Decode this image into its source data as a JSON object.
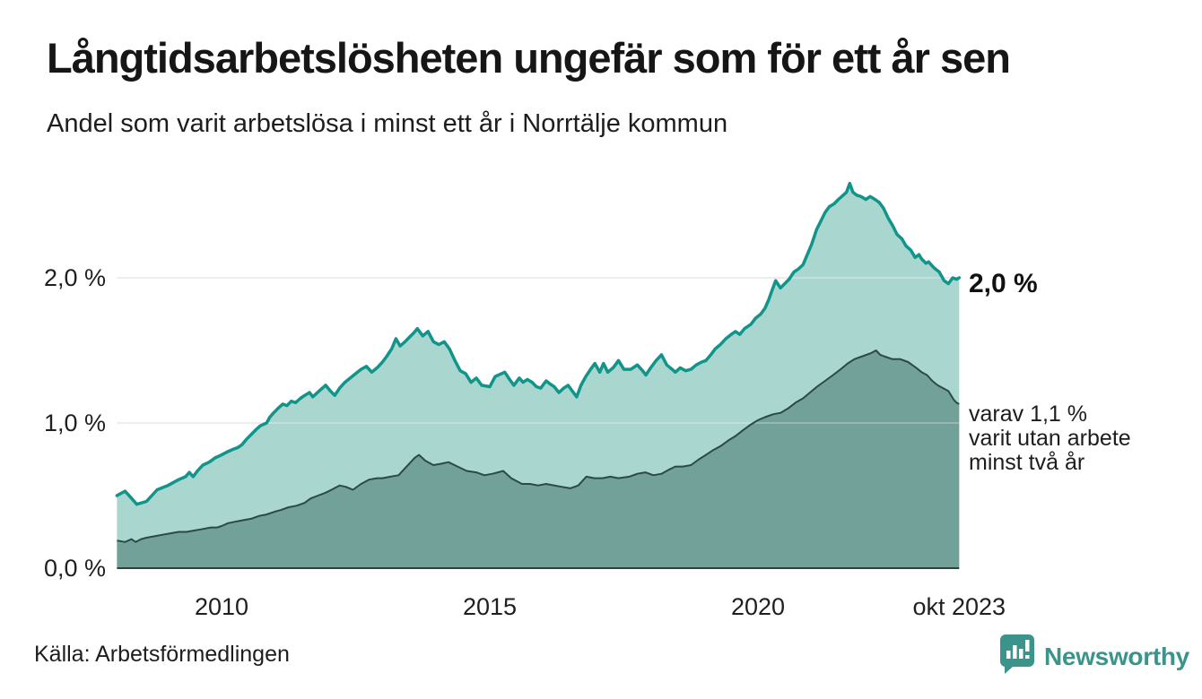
{
  "header": {
    "title": "Långtidsarbetslösheten ungefär som för ett år sen",
    "subtitle": "Andel som varit arbetslösa i minst ett år i Norrtälje kommun"
  },
  "annotations": {
    "latest_total": "2,0 %",
    "two_year_lines": [
      "varav 1,1 %",
      "varit utan arbete",
      "minst två år"
    ]
  },
  "footer": {
    "source": "Källa: Arbetsförmedlingen",
    "brand": "Newsworthy"
  },
  "colors": {
    "line_one_year": "#119489",
    "fill_one_year": "#a9d6cf",
    "line_two_years": "#2b4a45",
    "fill_two_years": "#71a199",
    "gridline": "#dedede",
    "gridline_overlay": "rgba(255,255,255,0.35)",
    "axis_line": "#3a3a3a",
    "tick_text": "#1f1f1f",
    "brand_teal": "#3b948c"
  },
  "chart_data": {
    "type": "area",
    "title": "Andel som varit arbetslösa i minst ett år i Norrtälje kommun",
    "unit": "%",
    "grid": "horizontal",
    "legend_position": "end-of-line labels",
    "x_range": [
      2008.05,
      2023.75
    ],
    "ylim": [
      0,
      2.8
    ],
    "y_ticks": [
      {
        "value": 0,
        "label": "0,0 %"
      },
      {
        "value": 1,
        "label": "1,0 %"
      },
      {
        "value": 2,
        "label": "2,0 %"
      }
    ],
    "x_ticks": [
      {
        "value": 2010,
        "label": "2010"
      },
      {
        "value": 2015,
        "label": "2015"
      },
      {
        "value": 2020,
        "label": "2020"
      },
      {
        "value": 2023.75,
        "label": "okt 2023"
      }
    ],
    "series": [
      {
        "name": "Arbetslösa minst ett år",
        "end_label": "2,0 %",
        "latest_value": 2.0,
        "points": [
          [
            2008.05,
            0.5
          ],
          [
            2008.2,
            0.53
          ],
          [
            2008.3,
            0.49
          ],
          [
            2008.42,
            0.44
          ],
          [
            2008.6,
            0.46
          ],
          [
            2008.8,
            0.54
          ],
          [
            2009.0,
            0.57
          ],
          [
            2009.2,
            0.61
          ],
          [
            2009.33,
            0.63
          ],
          [
            2009.4,
            0.66
          ],
          [
            2009.47,
            0.63
          ],
          [
            2009.55,
            0.67
          ],
          [
            2009.65,
            0.71
          ],
          [
            2009.77,
            0.73
          ],
          [
            2009.88,
            0.76
          ],
          [
            2010.0,
            0.78
          ],
          [
            2010.1,
            0.8
          ],
          [
            2010.22,
            0.82
          ],
          [
            2010.3,
            0.83
          ],
          [
            2010.38,
            0.85
          ],
          [
            2010.47,
            0.89
          ],
          [
            2010.55,
            0.92
          ],
          [
            2010.63,
            0.95
          ],
          [
            2010.72,
            0.98
          ],
          [
            2010.84,
            1.0
          ],
          [
            2010.9,
            1.04
          ],
          [
            2010.97,
            1.07
          ],
          [
            2011.05,
            1.1
          ],
          [
            2011.14,
            1.13
          ],
          [
            2011.22,
            1.12
          ],
          [
            2011.3,
            1.15
          ],
          [
            2011.38,
            1.14
          ],
          [
            2011.47,
            1.17
          ],
          [
            2011.55,
            1.19
          ],
          [
            2011.64,
            1.21
          ],
          [
            2011.7,
            1.18
          ],
          [
            2011.76,
            1.2
          ],
          [
            2011.85,
            1.23
          ],
          [
            2011.94,
            1.26
          ],
          [
            2012.03,
            1.22
          ],
          [
            2012.11,
            1.19
          ],
          [
            2012.2,
            1.24
          ],
          [
            2012.3,
            1.28
          ],
          [
            2012.4,
            1.31
          ],
          [
            2012.5,
            1.34
          ],
          [
            2012.6,
            1.37
          ],
          [
            2012.7,
            1.39
          ],
          [
            2012.8,
            1.35
          ],
          [
            2012.9,
            1.38
          ],
          [
            2013.0,
            1.42
          ],
          [
            2013.08,
            1.46
          ],
          [
            2013.17,
            1.51
          ],
          [
            2013.25,
            1.58
          ],
          [
            2013.33,
            1.53
          ],
          [
            2013.42,
            1.56
          ],
          [
            2013.5,
            1.59
          ],
          [
            2013.58,
            1.62
          ],
          [
            2013.65,
            1.65
          ],
          [
            2013.75,
            1.6
          ],
          [
            2013.85,
            1.63
          ],
          [
            2013.95,
            1.56
          ],
          [
            2014.05,
            1.54
          ],
          [
            2014.15,
            1.56
          ],
          [
            2014.25,
            1.51
          ],
          [
            2014.35,
            1.43
          ],
          [
            2014.45,
            1.36
          ],
          [
            2014.55,
            1.34
          ],
          [
            2014.65,
            1.28
          ],
          [
            2014.75,
            1.31
          ],
          [
            2014.85,
            1.26
          ],
          [
            2015.0,
            1.25
          ],
          [
            2015.1,
            1.32
          ],
          [
            2015.28,
            1.35
          ],
          [
            2015.37,
            1.3
          ],
          [
            2015.45,
            1.26
          ],
          [
            2015.55,
            1.31
          ],
          [
            2015.62,
            1.28
          ],
          [
            2015.7,
            1.3
          ],
          [
            2015.79,
            1.28
          ],
          [
            2015.87,
            1.25
          ],
          [
            2015.95,
            1.24
          ],
          [
            2016.05,
            1.29
          ],
          [
            2016.12,
            1.27
          ],
          [
            2016.2,
            1.25
          ],
          [
            2016.29,
            1.21
          ],
          [
            2016.38,
            1.24
          ],
          [
            2016.46,
            1.26
          ],
          [
            2016.54,
            1.22
          ],
          [
            2016.62,
            1.18
          ],
          [
            2016.7,
            1.26
          ],
          [
            2016.79,
            1.32
          ],
          [
            2016.88,
            1.37
          ],
          [
            2016.96,
            1.41
          ],
          [
            2017.05,
            1.35
          ],
          [
            2017.12,
            1.41
          ],
          [
            2017.2,
            1.35
          ],
          [
            2017.3,
            1.38
          ],
          [
            2017.4,
            1.43
          ],
          [
            2017.5,
            1.37
          ],
          [
            2017.63,
            1.37
          ],
          [
            2017.75,
            1.4
          ],
          [
            2017.85,
            1.36
          ],
          [
            2017.91,
            1.33
          ],
          [
            2018.0,
            1.38
          ],
          [
            2018.1,
            1.43
          ],
          [
            2018.2,
            1.47
          ],
          [
            2018.3,
            1.4
          ],
          [
            2018.4,
            1.37
          ],
          [
            2018.46,
            1.35
          ],
          [
            2018.55,
            1.38
          ],
          [
            2018.65,
            1.36
          ],
          [
            2018.75,
            1.37
          ],
          [
            2018.85,
            1.4
          ],
          [
            2018.95,
            1.42
          ],
          [
            2019.03,
            1.43
          ],
          [
            2019.12,
            1.47
          ],
          [
            2019.2,
            1.51
          ],
          [
            2019.3,
            1.54
          ],
          [
            2019.4,
            1.58
          ],
          [
            2019.5,
            1.61
          ],
          [
            2019.58,
            1.63
          ],
          [
            2019.66,
            1.61
          ],
          [
            2019.75,
            1.65
          ],
          [
            2019.87,
            1.68
          ],
          [
            2019.95,
            1.72
          ],
          [
            2020.05,
            1.75
          ],
          [
            2020.13,
            1.79
          ],
          [
            2020.2,
            1.85
          ],
          [
            2020.25,
            1.9
          ],
          [
            2020.33,
            1.98
          ],
          [
            2020.42,
            1.93
          ],
          [
            2020.5,
            1.96
          ],
          [
            2020.58,
            1.99
          ],
          [
            2020.67,
            2.04
          ],
          [
            2020.75,
            2.06
          ],
          [
            2020.84,
            2.09
          ],
          [
            2020.92,
            2.16
          ],
          [
            2021.0,
            2.23
          ],
          [
            2021.09,
            2.33
          ],
          [
            2021.17,
            2.39
          ],
          [
            2021.25,
            2.45
          ],
          [
            2021.33,
            2.49
          ],
          [
            2021.42,
            2.51
          ],
          [
            2021.5,
            2.54
          ],
          [
            2021.59,
            2.57
          ],
          [
            2021.65,
            2.59
          ],
          [
            2021.71,
            2.65
          ],
          [
            2021.77,
            2.59
          ],
          [
            2021.84,
            2.57
          ],
          [
            2021.92,
            2.56
          ],
          [
            2022.01,
            2.54
          ],
          [
            2022.09,
            2.56
          ],
          [
            2022.18,
            2.54
          ],
          [
            2022.26,
            2.52
          ],
          [
            2022.34,
            2.48
          ],
          [
            2022.43,
            2.41
          ],
          [
            2022.51,
            2.36
          ],
          [
            2022.59,
            2.3
          ],
          [
            2022.68,
            2.27
          ],
          [
            2022.76,
            2.22
          ],
          [
            2022.85,
            2.19
          ],
          [
            2022.93,
            2.14
          ],
          [
            2023.0,
            2.16
          ],
          [
            2023.05,
            2.13
          ],
          [
            2023.13,
            2.1
          ],
          [
            2023.18,
            2.11
          ],
          [
            2023.28,
            2.07
          ],
          [
            2023.38,
            2.04
          ],
          [
            2023.47,
            1.98
          ],
          [
            2023.55,
            1.96
          ],
          [
            2023.63,
            2.0
          ],
          [
            2023.7,
            1.99
          ],
          [
            2023.75,
            2.0
          ]
        ]
      },
      {
        "name": "Arbetslösa minst två år",
        "end_label": "varav 1,1 % varit utan arbete minst två år",
        "latest_value": 1.1,
        "points": [
          [
            2008.05,
            0.19
          ],
          [
            2008.2,
            0.18
          ],
          [
            2008.32,
            0.2
          ],
          [
            2008.4,
            0.18
          ],
          [
            2008.5,
            0.2
          ],
          [
            2008.6,
            0.21
          ],
          [
            2008.75,
            0.22
          ],
          [
            2008.9,
            0.23
          ],
          [
            2009.05,
            0.24
          ],
          [
            2009.2,
            0.25
          ],
          [
            2009.35,
            0.25
          ],
          [
            2009.5,
            0.26
          ],
          [
            2009.65,
            0.27
          ],
          [
            2009.8,
            0.28
          ],
          [
            2009.92,
            0.28
          ],
          [
            2010.0,
            0.29
          ],
          [
            2010.12,
            0.31
          ],
          [
            2010.25,
            0.32
          ],
          [
            2010.4,
            0.33
          ],
          [
            2010.55,
            0.34
          ],
          [
            2010.7,
            0.36
          ],
          [
            2010.84,
            0.37
          ],
          [
            2011.0,
            0.39
          ],
          [
            2011.1,
            0.4
          ],
          [
            2011.25,
            0.42
          ],
          [
            2011.4,
            0.43
          ],
          [
            2011.55,
            0.45
          ],
          [
            2011.66,
            0.48
          ],
          [
            2011.8,
            0.5
          ],
          [
            2011.94,
            0.52
          ],
          [
            2012.05,
            0.54
          ],
          [
            2012.2,
            0.57
          ],
          [
            2012.32,
            0.56
          ],
          [
            2012.45,
            0.54
          ],
          [
            2012.6,
            0.58
          ],
          [
            2012.75,
            0.61
          ],
          [
            2012.9,
            0.62
          ],
          [
            2013.0,
            0.62
          ],
          [
            2013.15,
            0.63
          ],
          [
            2013.3,
            0.64
          ],
          [
            2013.45,
            0.7
          ],
          [
            2013.6,
            0.76
          ],
          [
            2013.68,
            0.78
          ],
          [
            2013.8,
            0.74
          ],
          [
            2013.95,
            0.71
          ],
          [
            2014.1,
            0.72
          ],
          [
            2014.23,
            0.73
          ],
          [
            2014.4,
            0.7
          ],
          [
            2014.57,
            0.67
          ],
          [
            2014.75,
            0.66
          ],
          [
            2014.9,
            0.64
          ],
          [
            2015.05,
            0.65
          ],
          [
            2015.25,
            0.67
          ],
          [
            2015.4,
            0.62
          ],
          [
            2015.6,
            0.58
          ],
          [
            2015.75,
            0.58
          ],
          [
            2015.9,
            0.57
          ],
          [
            2016.05,
            0.58
          ],
          [
            2016.2,
            0.57
          ],
          [
            2016.35,
            0.56
          ],
          [
            2016.5,
            0.55
          ],
          [
            2016.65,
            0.57
          ],
          [
            2016.8,
            0.63
          ],
          [
            2016.95,
            0.62
          ],
          [
            2017.1,
            0.62
          ],
          [
            2017.25,
            0.63
          ],
          [
            2017.4,
            0.62
          ],
          [
            2017.6,
            0.63
          ],
          [
            2017.75,
            0.65
          ],
          [
            2017.9,
            0.66
          ],
          [
            2018.05,
            0.64
          ],
          [
            2018.2,
            0.65
          ],
          [
            2018.35,
            0.68
          ],
          [
            2018.46,
            0.7
          ],
          [
            2018.6,
            0.7
          ],
          [
            2018.75,
            0.71
          ],
          [
            2018.9,
            0.75
          ],
          [
            2019.03,
            0.78
          ],
          [
            2019.15,
            0.81
          ],
          [
            2019.3,
            0.84
          ],
          [
            2019.45,
            0.88
          ],
          [
            2019.58,
            0.91
          ],
          [
            2019.72,
            0.95
          ],
          [
            2019.87,
            0.99
          ],
          [
            2020.0,
            1.02
          ],
          [
            2020.13,
            1.04
          ],
          [
            2020.28,
            1.06
          ],
          [
            2020.42,
            1.07
          ],
          [
            2020.56,
            1.1
          ],
          [
            2020.7,
            1.14
          ],
          [
            2020.84,
            1.17
          ],
          [
            2020.97,
            1.21
          ],
          [
            2021.1,
            1.25
          ],
          [
            2021.25,
            1.29
          ],
          [
            2021.4,
            1.33
          ],
          [
            2021.54,
            1.37
          ],
          [
            2021.67,
            1.41
          ],
          [
            2021.8,
            1.44
          ],
          [
            2021.95,
            1.46
          ],
          [
            2022.1,
            1.48
          ],
          [
            2022.2,
            1.5
          ],
          [
            2022.28,
            1.47
          ],
          [
            2022.35,
            1.46
          ],
          [
            2022.5,
            1.44
          ],
          [
            2022.65,
            1.44
          ],
          [
            2022.8,
            1.42
          ],
          [
            2022.95,
            1.38
          ],
          [
            2023.05,
            1.35
          ],
          [
            2023.15,
            1.33
          ],
          [
            2023.25,
            1.29
          ],
          [
            2023.35,
            1.26
          ],
          [
            2023.45,
            1.24
          ],
          [
            2023.55,
            1.22
          ],
          [
            2023.65,
            1.16
          ],
          [
            2023.7,
            1.14
          ],
          [
            2023.75,
            1.13
          ]
        ]
      }
    ]
  }
}
